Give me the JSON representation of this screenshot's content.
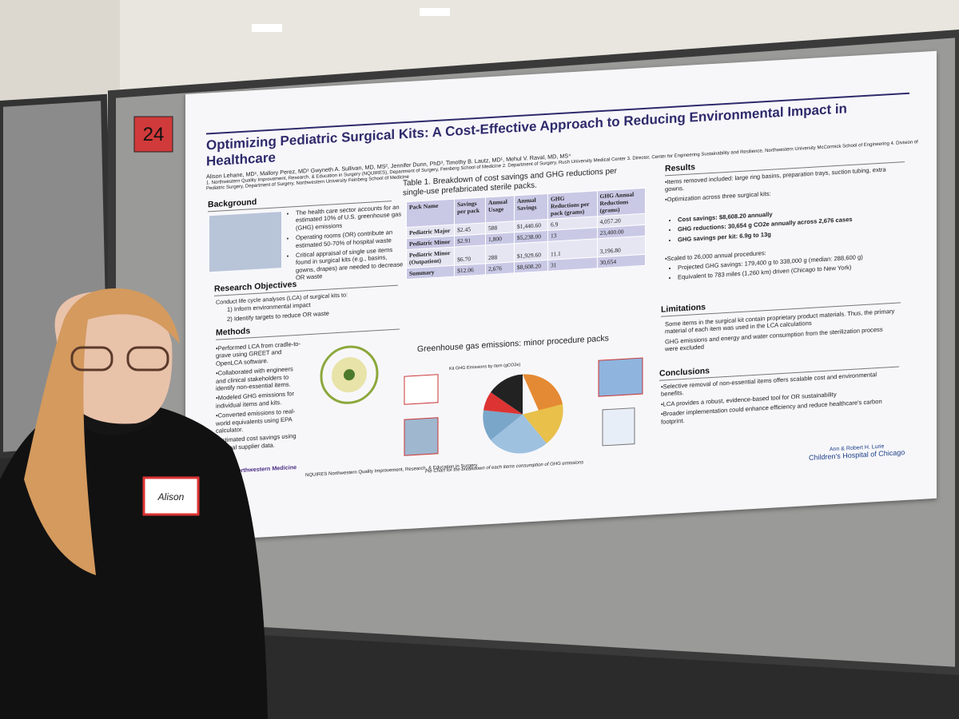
{
  "board_number": "24",
  "name_tag": "Alison",
  "poster": {
    "title": "Optimizing Pediatric Surgical Kits: A Cost-Effective Approach to Reducing Environmental Impact in Healthcare",
    "authors": "Alison Lehane, MD¹, Mallory Perez, MD¹ Gwyneth A. Sullivan, MD, MS², Jennifer Dunn, PhD³, Timothy B. Lautz, MD¹, Mehul V. Raval, MD, MS⁴",
    "affiliations": "1. Northwestern Quality Improvement, Research, & Education in Surgery (NQUIRES), Department of Surgery, Feinberg School of Medicine 2. Department of Surgery, Rush University Medical Center 3. Director, Center for Engineering Sustainability and Resilience, Northwestern University McCormick School of Engineering 4. Division of Pediatric Surgery, Department of Surgery, Northwestern University Feinberg School of Medicine",
    "background": {
      "heading": "Background",
      "items": [
        "The health care sector accounts for an estimated 10% of U.S. greenhouse gas (GHG) emissions",
        "Operating rooms (OR) contribute an estimated 50-70% of hospital waste",
        "Critical appraisal of single use items found in surgical kits (e.g., basins, gowns, drapes) are needed to decrease OR waste"
      ]
    },
    "objectives": {
      "heading": "Research Objectives",
      "intro": "Conduct life cycle analyses (LCA) of surgical kits to:",
      "items": [
        "1) Inform environmental impact",
        "2) Identify targets to reduce OR waste"
      ]
    },
    "methods": {
      "heading": "Methods",
      "items": [
        "•Performed LCA from cradle-to-grave using GREET and OpenLCA software.",
        "•Collaborated with engineers and clinical stakeholders to identify non-essential items.",
        "•Modeled GHG emissions for individual items and kits.",
        "•Converted emissions to real-world equivalents using EPA calculator.",
        "•Estimated cost savings using medical supplier data."
      ]
    },
    "table": {
      "caption": "Table 1. Breakdown of cost savings and GHG reductions per single-use prefabricated sterile packs.",
      "headers": [
        "Pack Name",
        "Savings per pack",
        "Annual Usage",
        "Annual Savings",
        "GHG Reductions per pack (grams)",
        "GHG Annual Reductions (grams)"
      ],
      "rows": [
        [
          "Pediatric Major",
          "$2.45",
          "588",
          "$1,440.60",
          "6.9",
          "4,057.20"
        ],
        [
          "Pediatric Minor",
          "$2.91",
          "1,800",
          "$5,238.00",
          "13",
          "23,400.00"
        ],
        [
          "Pediatric Minor (Outpatient)",
          "$6.70",
          "288",
          "$1,929.60",
          "11.1",
          "3,196.80"
        ],
        [
          "Summary",
          "$12.06",
          "2,676",
          "$8,608.20",
          "31",
          "30,654"
        ]
      ]
    },
    "pie": {
      "title": "Greenhouse gas emissions: minor procedure packs",
      "subtitle": "Kit GHG Emissions by Item (gCO2e)",
      "caption": "Pie Chart for the breakdown of each items consumption of GHG emissions"
    },
    "results": {
      "heading": "Results",
      "items": [
        "•Items removed included: large ring basins, preparation trays, suction tubing, extra gowns.",
        "•Optimization across three surgical kits:"
      ],
      "sub": [
        "Cost savings: $8,608.20 annually",
        "GHG reductions: 30,654 g CO2e annually across 2,676 cases",
        "GHG savings per kit: 6.9g to 13g"
      ],
      "scaled": "•Scaled to 26,000 annual procedures:",
      "scaled_sub": [
        "Projected GHG savings: 179,400 g to 338,000 g (median: 288,600 g)",
        "Equivalent to 783 miles (1,260 km) driven (Chicago to New York)"
      ]
    },
    "limitations": {
      "heading": "Limitations",
      "items": [
        "Some items in the surgical kit contain proprietary product materials. Thus, the primary material of each item was used in the LCA calculations",
        "GHG emissions and energy and water consumption from the sterilization process were excluded"
      ]
    },
    "conclusions": {
      "heading": "Conclusions",
      "items": [
        "•Selective removal of non-essential items offers scalable cost and environmental benefits.",
        "•LCA provides a robust, evidence-based tool for OR sustainability",
        "•Broader implementation could enhance efficiency and reduce healthcare's carbon footprint."
      ]
    },
    "footer_left": "Northwestern Medicine",
    "footer_center": "NQUIRES Northwestern Quality Improvement, Research, & Education in Surgery",
    "logo_top": "Ann & Robert H. Lurie",
    "logo_bottom": "Children's Hospital of Chicago"
  }
}
